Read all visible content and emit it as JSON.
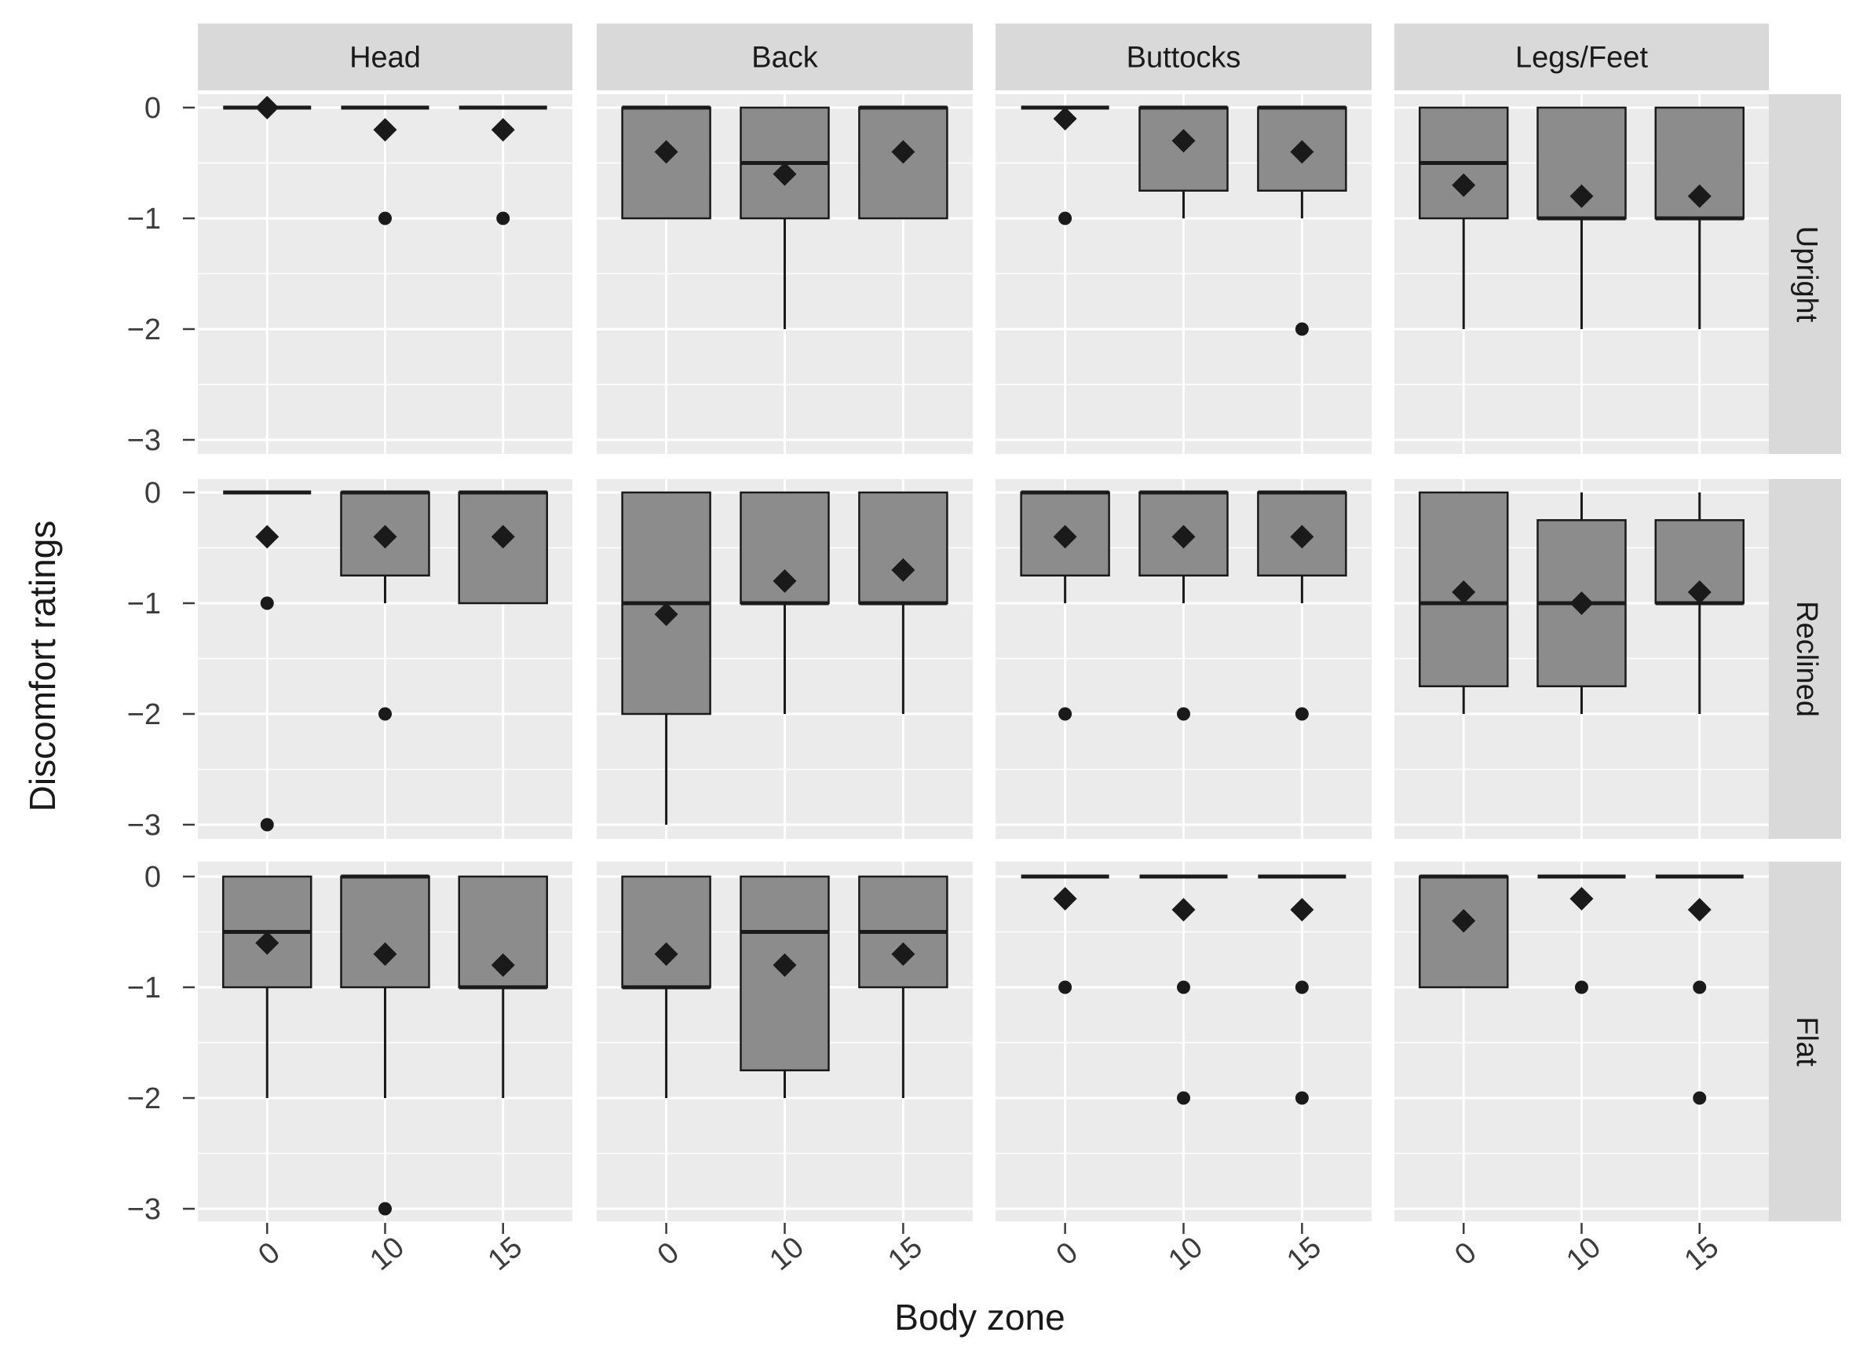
{
  "chart_data": {
    "type": "box",
    "xlabel": "Body zone",
    "ylabel": "Discomfort ratings",
    "ylim": [
      -3,
      0
    ],
    "y_ticks": [
      "0",
      "−1",
      "−2",
      "−3"
    ],
    "x_ticks": [
      "0",
      "10",
      "15"
    ],
    "columns": [
      "Head",
      "Back",
      "Buttocks",
      "Legs/Feet"
    ],
    "rows": [
      "Upright",
      "Reclined",
      "Flat"
    ],
    "panels": [
      [
        {
          "boxes": [
            {
              "x": "0",
              "q1": 0,
              "median": 0,
              "q3": 0,
              "wlow": 0,
              "whigh": 0,
              "mean": 0,
              "outliers": []
            },
            {
              "x": "10",
              "q1": 0,
              "median": 0,
              "q3": 0,
              "wlow": 0,
              "whigh": 0,
              "mean": -0.2,
              "outliers": [
                -1
              ]
            },
            {
              "x": "15",
              "q1": 0,
              "median": 0,
              "q3": 0,
              "wlow": 0,
              "whigh": 0,
              "mean": -0.2,
              "outliers": [
                -1
              ]
            }
          ]
        },
        {
          "boxes": [
            {
              "x": "0",
              "q1": -1,
              "median": 0,
              "q3": 0,
              "wlow": -1,
              "whigh": 0,
              "mean": -0.4,
              "outliers": []
            },
            {
              "x": "10",
              "q1": -1,
              "median": -0.5,
              "q3": 0,
              "wlow": -2,
              "whigh": 0,
              "mean": -0.6,
              "outliers": []
            },
            {
              "x": "15",
              "q1": -1,
              "median": 0,
              "q3": 0,
              "wlow": -1,
              "whigh": 0,
              "mean": -0.4,
              "outliers": []
            }
          ]
        },
        {
          "boxes": [
            {
              "x": "0",
              "q1": 0,
              "median": 0,
              "q3": 0,
              "wlow": 0,
              "whigh": 0,
              "mean": -0.1,
              "outliers": [
                -1
              ]
            },
            {
              "x": "10",
              "q1": -0.75,
              "median": 0,
              "q3": 0,
              "wlow": -1,
              "whigh": 0,
              "mean": -0.3,
              "outliers": []
            },
            {
              "x": "15",
              "q1": -0.75,
              "median": 0,
              "q3": 0,
              "wlow": -1,
              "whigh": 0,
              "mean": -0.4,
              "outliers": [
                -2
              ]
            }
          ]
        },
        {
          "boxes": [
            {
              "x": "0",
              "q1": -1,
              "median": -0.5,
              "q3": 0,
              "wlow": -2,
              "whigh": 0,
              "mean": -0.7,
              "outliers": []
            },
            {
              "x": "10",
              "q1": -1,
              "median": -1,
              "q3": 0,
              "wlow": -2,
              "whigh": 0,
              "mean": -0.8,
              "outliers": []
            },
            {
              "x": "15",
              "q1": -1,
              "median": -1,
              "q3": 0,
              "wlow": -2,
              "whigh": 0,
              "mean": -0.8,
              "outliers": []
            }
          ]
        }
      ],
      [
        {
          "boxes": [
            {
              "x": "0",
              "q1": 0,
              "median": 0,
              "q3": 0,
              "wlow": 0,
              "whigh": 0,
              "mean": -0.4,
              "outliers": [
                -1,
                -3
              ]
            },
            {
              "x": "10",
              "q1": -0.75,
              "median": 0,
              "q3": 0,
              "wlow": -1,
              "whigh": 0,
              "mean": -0.4,
              "outliers": [
                -2
              ]
            },
            {
              "x": "15",
              "q1": -1,
              "median": 0,
              "q3": 0,
              "wlow": -1,
              "whigh": 0,
              "mean": -0.4,
              "outliers": []
            }
          ]
        },
        {
          "boxes": [
            {
              "x": "0",
              "q1": -2,
              "median": -1,
              "q3": 0,
              "wlow": -3,
              "whigh": 0,
              "mean": -1.1,
              "outliers": []
            },
            {
              "x": "10",
              "q1": -1,
              "median": -1,
              "q3": 0,
              "wlow": -2,
              "whigh": 0,
              "mean": -0.8,
              "outliers": []
            },
            {
              "x": "15",
              "q1": -1,
              "median": -1,
              "q3": 0,
              "wlow": -2,
              "whigh": 0,
              "mean": -0.7,
              "outliers": []
            }
          ]
        },
        {
          "boxes": [
            {
              "x": "0",
              "q1": -0.75,
              "median": 0,
              "q3": 0,
              "wlow": -1,
              "whigh": 0,
              "mean": -0.4,
              "outliers": [
                -2
              ]
            },
            {
              "x": "10",
              "q1": -0.75,
              "median": 0,
              "q3": 0,
              "wlow": -1,
              "whigh": 0,
              "mean": -0.4,
              "outliers": [
                -2
              ]
            },
            {
              "x": "15",
              "q1": -0.75,
              "median": 0,
              "q3": 0,
              "wlow": -1,
              "whigh": 0,
              "mean": -0.4,
              "outliers": [
                -2
              ]
            }
          ]
        },
        {
          "boxes": [
            {
              "x": "0",
              "q1": -1.75,
              "median": -1,
              "q3": 0,
              "wlow": -2,
              "whigh": 0,
              "mean": -0.9,
              "outliers": []
            },
            {
              "x": "10",
              "q1": -1.75,
              "median": -1,
              "q3": -0.25,
              "wlow": -2,
              "whigh": 0,
              "mean": -1.0,
              "outliers": []
            },
            {
              "x": "15",
              "q1": -1,
              "median": -1,
              "q3": -0.25,
              "wlow": -2,
              "whigh": 0,
              "mean": -0.9,
              "outliers": []
            }
          ]
        }
      ],
      [
        {
          "boxes": [
            {
              "x": "0",
              "q1": -1,
              "median": -0.5,
              "q3": 0,
              "wlow": -2,
              "whigh": 0,
              "mean": -0.6,
              "outliers": []
            },
            {
              "x": "10",
              "q1": -1,
              "median": 0,
              "q3": 0,
              "wlow": -2,
              "whigh": 0,
              "mean": -0.7,
              "outliers": [
                -3
              ]
            },
            {
              "x": "15",
              "q1": -1,
              "median": -1,
              "q3": 0,
              "wlow": -2,
              "whigh": 0,
              "mean": -0.8,
              "outliers": []
            }
          ]
        },
        {
          "boxes": [
            {
              "x": "0",
              "q1": -1,
              "median": -1,
              "q3": 0,
              "wlow": -2,
              "whigh": 0,
              "mean": -0.7,
              "outliers": []
            },
            {
              "x": "10",
              "q1": -1.75,
              "median": -0.5,
              "q3": 0,
              "wlow": -2,
              "whigh": 0,
              "mean": -0.8,
              "outliers": []
            },
            {
              "x": "15",
              "q1": -1,
              "median": -0.5,
              "q3": 0,
              "wlow": -2,
              "whigh": 0,
              "mean": -0.7,
              "outliers": []
            }
          ]
        },
        {
          "boxes": [
            {
              "x": "0",
              "q1": 0,
              "median": 0,
              "q3": 0,
              "wlow": 0,
              "whigh": 0,
              "mean": -0.2,
              "outliers": [
                -1
              ]
            },
            {
              "x": "10",
              "q1": 0,
              "median": 0,
              "q3": 0,
              "wlow": 0,
              "whigh": 0,
              "mean": -0.3,
              "outliers": [
                -1,
                -2
              ]
            },
            {
              "x": "15",
              "q1": 0,
              "median": 0,
              "q3": 0,
              "wlow": 0,
              "whigh": 0,
              "mean": -0.3,
              "outliers": [
                -1,
                -2
              ]
            }
          ]
        },
        {
          "boxes": [
            {
              "x": "0",
              "q1": -1,
              "median": 0,
              "q3": 0,
              "wlow": -1,
              "whigh": 0,
              "mean": -0.4,
              "outliers": []
            },
            {
              "x": "10",
              "q1": 0,
              "median": 0,
              "q3": 0,
              "wlow": 0,
              "whigh": 0,
              "mean": -0.2,
              "outliers": [
                -1
              ]
            },
            {
              "x": "15",
              "q1": 0,
              "median": 0,
              "q3": 0,
              "wlow": 0,
              "whigh": 0,
              "mean": -0.3,
              "outliers": [
                -1,
                -2
              ]
            }
          ]
        }
      ]
    ],
    "colors": {
      "panel_bg": "#ebebeb",
      "grid": "#ffffff",
      "strip_bg": "#d9d9d9",
      "box_fill": "#8c8c8c",
      "ink": "#1a1a1a",
      "axis_text": "#3c3c3c"
    }
  }
}
